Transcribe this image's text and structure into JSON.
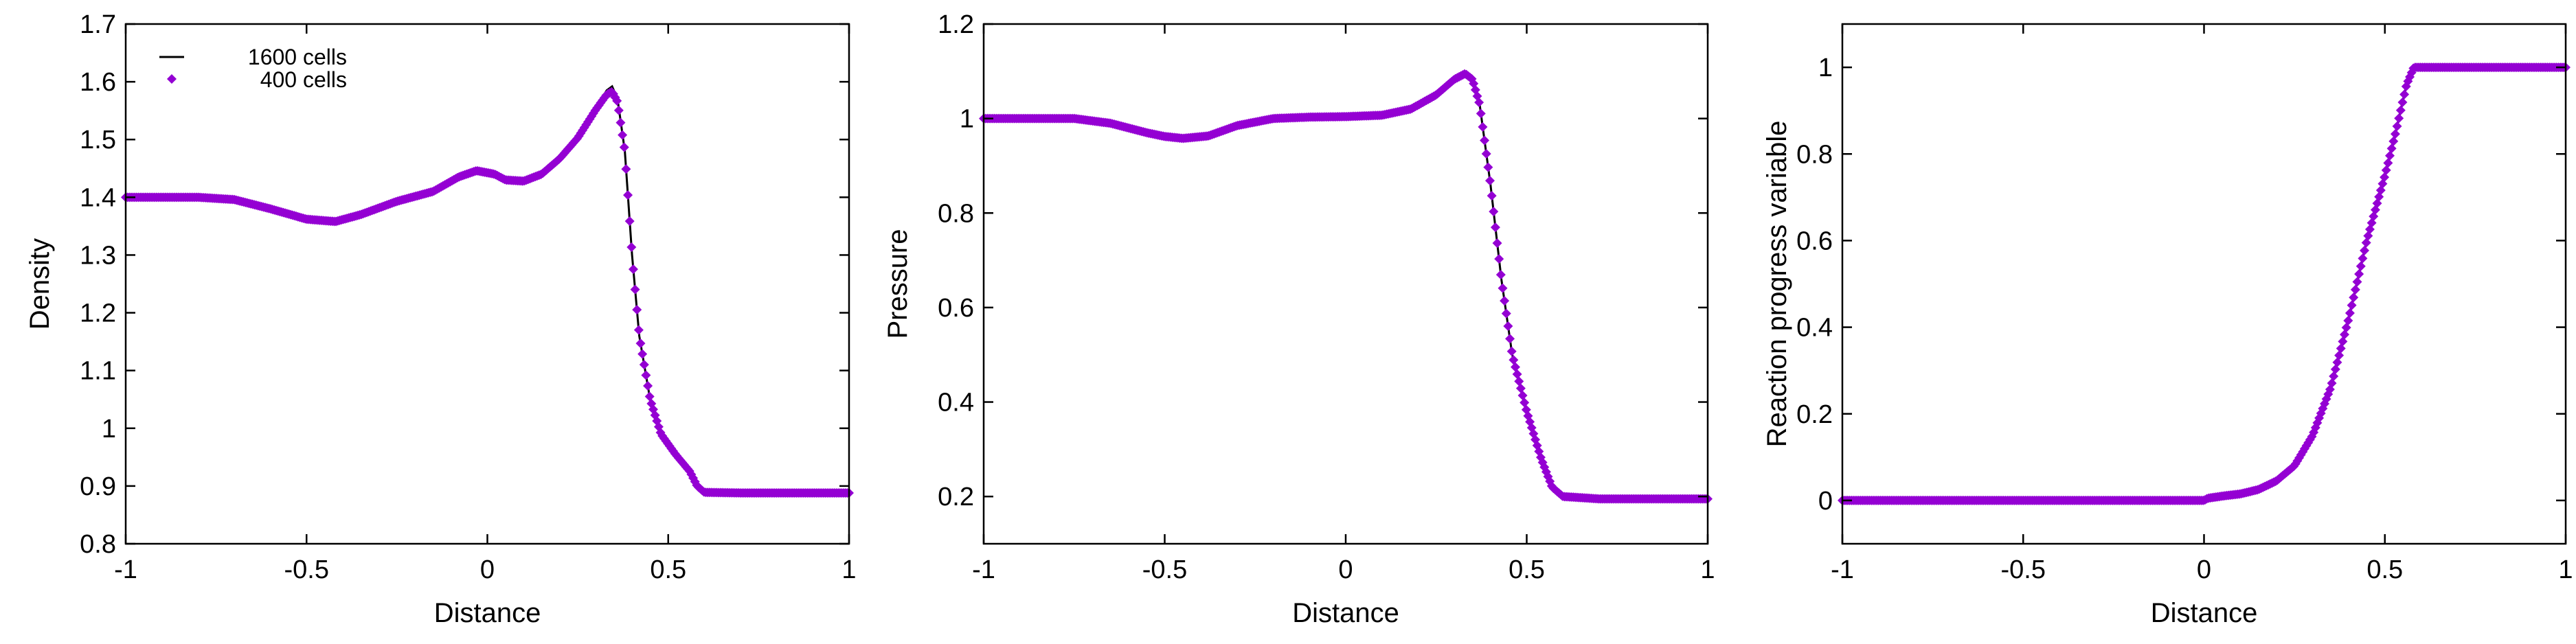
{
  "figure": {
    "fine_color": "#000000",
    "coarse_color": "#9400d3",
    "legend": {
      "fine_label": "1600 cells",
      "coarse_label": "400 cells"
    }
  },
  "chart_data": [
    {
      "type": "line",
      "xlabel": "Distance",
      "ylabel": "Density",
      "xlim": [
        -1,
        1
      ],
      "ylim": [
        0.8,
        1.7
      ],
      "xticks": [
        -1,
        -0.5,
        0,
        0.5,
        1
      ],
      "xtick_labels": [
        "-1",
        "-0.5",
        "0",
        "0.5",
        "1"
      ],
      "yticks": [
        0.8,
        0.9,
        1,
        1.1,
        1.2,
        1.3,
        1.4,
        1.5,
        1.6,
        1.7
      ],
      "ytick_labels": [
        "0.8",
        "0.9",
        "1",
        "1.1",
        "1.2",
        "1.3",
        "1.4",
        "1.5",
        "1.6",
        "1.7"
      ],
      "legend_position": "top-left",
      "series": [
        {
          "name": "1600 cells",
          "style": "line",
          "points": [
            [
              -1,
              1.4
            ],
            [
              -0.8,
              1.4
            ],
            [
              -0.7,
              1.396
            ],
            [
              -0.6,
              1.38
            ],
            [
              -0.5,
              1.362
            ],
            [
              -0.42,
              1.358
            ],
            [
              -0.35,
              1.37
            ],
            [
              -0.25,
              1.393
            ],
            [
              -0.15,
              1.41
            ],
            [
              -0.08,
              1.435
            ],
            [
              -0.03,
              1.447
            ],
            [
              0.02,
              1.44
            ],
            [
              0.05,
              1.43
            ],
            [
              0.1,
              1.428
            ],
            [
              0.15,
              1.44
            ],
            [
              0.2,
              1.468
            ],
            [
              0.25,
              1.505
            ],
            [
              0.3,
              1.555
            ],
            [
              0.33,
              1.585
            ],
            [
              0.345,
              1.592
            ],
            [
              0.36,
              1.57
            ],
            [
              0.38,
              1.48
            ],
            [
              0.4,
              1.3
            ],
            [
              0.42,
              1.16
            ],
            [
              0.45,
              1.05
            ],
            [
              0.48,
              0.99
            ],
            [
              0.52,
              0.955
            ],
            [
              0.56,
              0.925
            ],
            [
              0.58,
              0.9
            ],
            [
              0.6,
              0.889
            ],
            [
              0.7,
              0.888
            ],
            [
              1,
              0.888
            ]
          ]
        },
        {
          "name": "400 cells",
          "style": "points",
          "points": [
            [
              -1,
              1.4
            ],
            [
              -0.8,
              1.4
            ],
            [
              -0.7,
              1.396
            ],
            [
              -0.6,
              1.38
            ],
            [
              -0.5,
              1.362
            ],
            [
              -0.42,
              1.358
            ],
            [
              -0.35,
              1.37
            ],
            [
              -0.25,
              1.393
            ],
            [
              -0.15,
              1.41
            ],
            [
              -0.08,
              1.435
            ],
            [
              -0.03,
              1.446
            ],
            [
              0.02,
              1.44
            ],
            [
              0.05,
              1.43
            ],
            [
              0.1,
              1.428
            ],
            [
              0.15,
              1.44
            ],
            [
              0.2,
              1.467
            ],
            [
              0.25,
              1.503
            ],
            [
              0.3,
              1.552
            ],
            [
              0.33,
              1.578
            ],
            [
              0.345,
              1.583
            ],
            [
              0.36,
              1.565
            ],
            [
              0.38,
              1.48
            ],
            [
              0.4,
              1.3
            ],
            [
              0.42,
              1.16
            ],
            [
              0.45,
              1.05
            ],
            [
              0.48,
              0.99
            ],
            [
              0.52,
              0.955
            ],
            [
              0.56,
              0.925
            ],
            [
              0.58,
              0.9
            ],
            [
              0.6,
              0.889
            ],
            [
              0.7,
              0.888
            ],
            [
              1,
              0.888
            ]
          ]
        }
      ]
    },
    {
      "type": "line",
      "xlabel": "Distance",
      "ylabel": "Pressure",
      "xlim": [
        -1,
        1
      ],
      "ylim": [
        0.1,
        1.2
      ],
      "xticks": [
        -1,
        -0.5,
        0,
        0.5,
        1
      ],
      "xtick_labels": [
        "-1",
        "-0.5",
        "0",
        "0.5",
        "1"
      ],
      "yticks": [
        0.2,
        0.4,
        0.6,
        0.8,
        1,
        1.2
      ],
      "ytick_labels": [
        "0.2",
        "0.4",
        "0.6",
        "0.8",
        "1",
        "1.2"
      ],
      "series": [
        {
          "name": "1600 cells",
          "style": "line",
          "points": [
            [
              -1,
              1.0
            ],
            [
              -0.75,
              1.0
            ],
            [
              -0.65,
              0.99
            ],
            [
              -0.55,
              0.97
            ],
            [
              -0.5,
              0.962
            ],
            [
              -0.45,
              0.958
            ],
            [
              -0.38,
              0.963
            ],
            [
              -0.3,
              0.985
            ],
            [
              -0.2,
              1.0
            ],
            [
              -0.1,
              1.003
            ],
            [
              0,
              1.004
            ],
            [
              0.1,
              1.007
            ],
            [
              0.18,
              1.02
            ],
            [
              0.25,
              1.05
            ],
            [
              0.3,
              1.085
            ],
            [
              0.33,
              1.098
            ],
            [
              0.35,
              1.085
            ],
            [
              0.37,
              1.03
            ],
            [
              0.4,
              0.86
            ],
            [
              0.43,
              0.66
            ],
            [
              0.46,
              0.5
            ],
            [
              0.5,
              0.38
            ],
            [
              0.54,
              0.28
            ],
            [
              0.57,
              0.22
            ],
            [
              0.6,
              0.2
            ],
            [
              0.7,
              0.195
            ],
            [
              1,
              0.195
            ]
          ]
        },
        {
          "name": "400 cells",
          "style": "points",
          "points": [
            [
              -1,
              1.0
            ],
            [
              -0.75,
              1.0
            ],
            [
              -0.65,
              0.99
            ],
            [
              -0.55,
              0.97
            ],
            [
              -0.5,
              0.962
            ],
            [
              -0.45,
              0.958
            ],
            [
              -0.38,
              0.963
            ],
            [
              -0.3,
              0.985
            ],
            [
              -0.2,
              1.0
            ],
            [
              -0.1,
              1.003
            ],
            [
              0,
              1.004
            ],
            [
              0.1,
              1.007
            ],
            [
              0.18,
              1.02
            ],
            [
              0.25,
              1.05
            ],
            [
              0.3,
              1.083
            ],
            [
              0.33,
              1.095
            ],
            [
              0.35,
              1.083
            ],
            [
              0.37,
              1.03
            ],
            [
              0.4,
              0.86
            ],
            [
              0.43,
              0.66
            ],
            [
              0.46,
              0.5
            ],
            [
              0.5,
              0.38
            ],
            [
              0.54,
              0.28
            ],
            [
              0.57,
              0.22
            ],
            [
              0.6,
              0.2
            ],
            [
              0.7,
              0.195
            ],
            [
              1,
              0.195
            ]
          ]
        }
      ]
    },
    {
      "type": "line",
      "xlabel": "Distance",
      "ylabel": "Reaction progress variable",
      "xlim": [
        -1,
        1
      ],
      "ylim": [
        -0.1,
        1.1
      ],
      "xticks": [
        -1,
        -0.5,
        0,
        0.5,
        1
      ],
      "xtick_labels": [
        "-1",
        "-0.5",
        "0",
        "0.5",
        "1"
      ],
      "yticks": [
        0,
        0.2,
        0.4,
        0.6,
        0.8,
        1
      ],
      "ytick_labels": [
        "0",
        "0.2",
        "0.4",
        "0.6",
        "0.8",
        "1"
      ],
      "series": [
        {
          "name": "1600 cells",
          "style": "line",
          "points": [
            [
              -1,
              0
            ],
            [
              0,
              0
            ],
            [
              0.01,
              0.005
            ],
            [
              0.05,
              0.01
            ],
            [
              0.1,
              0.015
            ],
            [
              0.15,
              0.025
            ],
            [
              0.2,
              0.045
            ],
            [
              0.25,
              0.08
            ],
            [
              0.3,
              0.15
            ],
            [
              0.35,
              0.26
            ],
            [
              0.4,
              0.42
            ],
            [
              0.45,
              0.6
            ],
            [
              0.5,
              0.75
            ],
            [
              0.53,
              0.85
            ],
            [
              0.56,
              0.96
            ],
            [
              0.58,
              1.0
            ],
            [
              1,
              1.0
            ]
          ]
        },
        {
          "name": "400 cells",
          "style": "points",
          "points": [
            [
              -1,
              0
            ],
            [
              0,
              0
            ],
            [
              0.01,
              0.005
            ],
            [
              0.05,
              0.01
            ],
            [
              0.1,
              0.015
            ],
            [
              0.15,
              0.025
            ],
            [
              0.2,
              0.045
            ],
            [
              0.25,
              0.08
            ],
            [
              0.3,
              0.15
            ],
            [
              0.35,
              0.26
            ],
            [
              0.4,
              0.42
            ],
            [
              0.45,
              0.6
            ],
            [
              0.5,
              0.75
            ],
            [
              0.53,
              0.85
            ],
            [
              0.56,
              0.96
            ],
            [
              0.58,
              1.0
            ],
            [
              1,
              1.0
            ]
          ]
        }
      ]
    }
  ]
}
